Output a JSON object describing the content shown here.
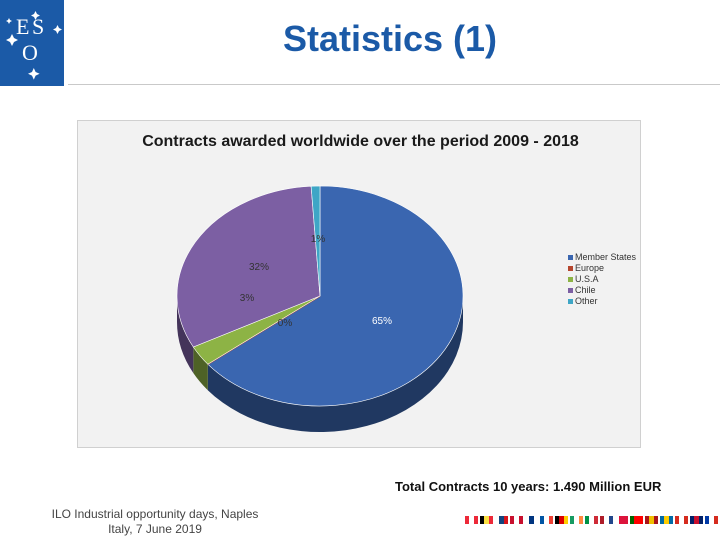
{
  "slide": {
    "title": "Statistics (1)",
    "logo_text": "ESO",
    "footer_left": "ILO Industrial opportunity days, Naples Italy, 7 June 2019",
    "footer_right": "Total Contracts 10 years: 1.490 Million EUR",
    "flags": [
      "austria-flag",
      "belgium-flag",
      "czech-flag",
      "denmark-flag",
      "finland-flag",
      "france-flag",
      "germany-flag",
      "ireland-flag",
      "italy-flag",
      "netherlands-flag",
      "poland-flag",
      "portugal-flag",
      "spain-flag",
      "sweden-flag",
      "switzerland-flag",
      "uk-flag",
      "chile-flag"
    ]
  },
  "chart_data": {
    "type": "pie",
    "title": "Contracts awarded worldwide over the period 2009 - 2018",
    "categories": [
      "Member States",
      "Europe",
      "U.S.A",
      "Chile",
      "Other"
    ],
    "values": [
      65,
      0,
      3,
      32,
      1
    ],
    "data_labels": [
      "65%",
      "0%",
      "3%",
      "32%",
      "1%"
    ],
    "colors": [
      "#3a66b0",
      "#b5462e",
      "#8db345",
      "#7c5fa3",
      "#3ea6c6"
    ],
    "legend_position": "right",
    "style": "3d"
  }
}
